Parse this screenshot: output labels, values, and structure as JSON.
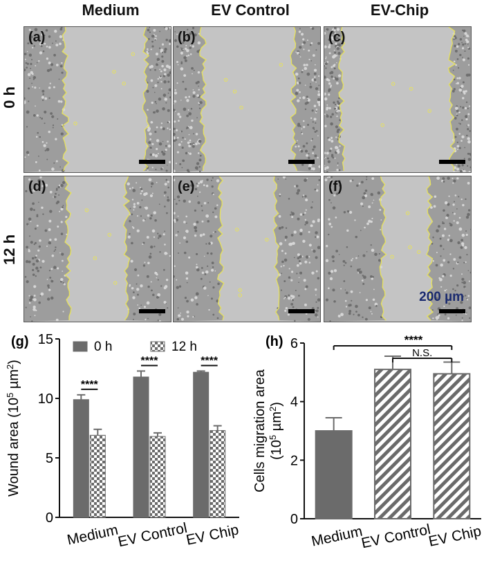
{
  "columns": [
    "Medium",
    "EV Control",
    "EV-Chip"
  ],
  "rows": [
    "0 h",
    "12 h"
  ],
  "panels": [
    {
      "letter": "(a)",
      "gap": [
        0.28,
        0.83
      ]
    },
    {
      "letter": "(b)",
      "gap": [
        0.2,
        0.82
      ]
    },
    {
      "letter": "(c)",
      "gap": [
        0.12,
        0.87
      ]
    },
    {
      "letter": "(d)",
      "gap": [
        0.3,
        0.7
      ]
    },
    {
      "letter": "(e)",
      "gap": [
        0.32,
        0.7
      ]
    },
    {
      "letter": "(f)",
      "gap": [
        0.4,
        0.72
      ]
    }
  ],
  "scale_label": "200 µm",
  "chart_data": [
    {
      "panel": "(g)",
      "type": "bar",
      "categories": [
        "Medium",
        "EV Control",
        "EV Chip"
      ],
      "series": [
        {
          "name": "0 h",
          "values": [
            9.9,
            11.8,
            12.2
          ],
          "errors": [
            0.4,
            0.5,
            0.1
          ],
          "color": "#6b6b6b",
          "pattern": "solid"
        },
        {
          "name": "12 h",
          "values": [
            6.9,
            6.8,
            7.3
          ],
          "errors": [
            0.5,
            0.3,
            0.4
          ],
          "color": "#6b6b6b",
          "pattern": "checker"
        }
      ],
      "ylabel_pre": "Wound area (10",
      "ylabel_sup1": "5",
      "ylabel_mid": " µm",
      "ylabel_sup2": "2",
      "ylabel_post": ")",
      "ylim": [
        0,
        15
      ],
      "yticks": [
        "0",
        "5",
        "10",
        "15"
      ],
      "significance": [
        "****",
        "****",
        "****"
      ],
      "legend_position": "top"
    },
    {
      "panel": "(h)",
      "type": "bar",
      "categories": [
        "Medium",
        "EV Control",
        "EV Chip"
      ],
      "series": [
        {
          "values": [
            3.0,
            5.1,
            4.95
          ],
          "errors": [
            0.45,
            0.45,
            0.4
          ],
          "patterns": [
            "solid",
            "hatch",
            "hatch"
          ],
          "color": "#6b6b6b"
        }
      ],
      "ylabel_line1": "Cells migration area",
      "ylabel_pre": "(10",
      "ylabel_sup1": "5",
      "ylabel_mid": " µm",
      "ylabel_sup2": "2",
      "ylabel_post": ")",
      "ylim": [
        0,
        6
      ],
      "yticks": [
        "0",
        "2",
        "4",
        "6"
      ],
      "comparisons": [
        {
          "from": 0,
          "to": 2,
          "label": "****"
        },
        {
          "from": 1,
          "to": 2,
          "label": "N.S."
        }
      ]
    }
  ]
}
